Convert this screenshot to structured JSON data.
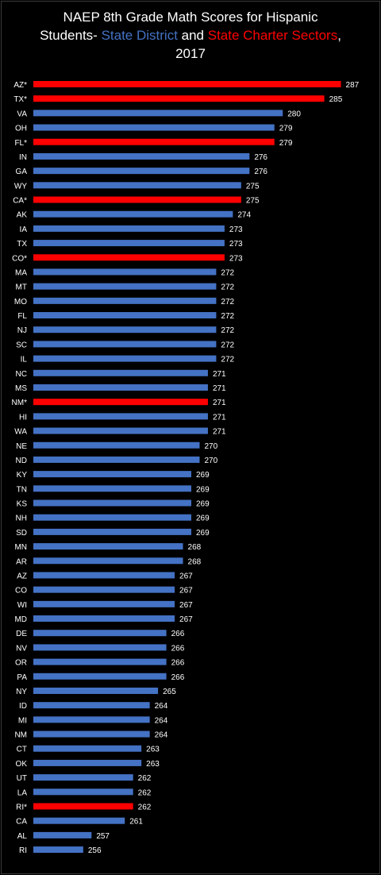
{
  "title": {
    "line1": "NAEP 8th Grade Math Scores for Hispanic",
    "line2_prefix": "Students- ",
    "line2_blue": "State District",
    "line2_mid": " and ",
    "line2_red": "State Charter Sectors",
    "line2_suffix": ",",
    "line3": "2017"
  },
  "colors": {
    "background": "#000000",
    "district": "#4472C4",
    "charter": "#FF0000",
    "text": "#FFFFFF"
  },
  "chart_data": {
    "type": "bar",
    "orientation": "horizontal",
    "xlim": [
      250,
      288
    ],
    "grid": false,
    "legend": "none",
    "categories": [
      "AZ*",
      "TX*",
      "VA",
      "OH",
      "FL*",
      "IN",
      "GA",
      "WY",
      "CA*",
      "AK",
      "IA",
      "TX",
      "CO*",
      "MA",
      "MT",
      "MO",
      "FL",
      "NJ",
      "SC",
      "IL",
      "NC",
      "MS",
      "NM*",
      "HI",
      "WA",
      "NE",
      "ND",
      "KY",
      "TN",
      "KS",
      "NH",
      "SD",
      "MN",
      "AR",
      "AZ",
      "CO",
      "WI",
      "MD",
      "DE",
      "NV",
      "OR",
      "PA",
      "NY",
      "ID",
      "MI",
      "NM",
      "CT",
      "OK",
      "UT",
      "LA",
      "RI*",
      "CA",
      "AL",
      "RI"
    ],
    "values": [
      287,
      285,
      280,
      279,
      279,
      276,
      276,
      275,
      275,
      274,
      273,
      273,
      273,
      272,
      272,
      272,
      272,
      272,
      272,
      272,
      271,
      271,
      271,
      271,
      271,
      270,
      270,
      269,
      269,
      269,
      269,
      269,
      268,
      268,
      267,
      267,
      267,
      267,
      266,
      266,
      266,
      266,
      265,
      264,
      264,
      264,
      263,
      263,
      262,
      262,
      262,
      261,
      257,
      256
    ],
    "charter": [
      true,
      true,
      false,
      false,
      true,
      false,
      false,
      false,
      true,
      false,
      false,
      false,
      true,
      false,
      false,
      false,
      false,
      false,
      false,
      false,
      false,
      false,
      true,
      false,
      false,
      false,
      false,
      false,
      false,
      false,
      false,
      false,
      false,
      false,
      false,
      false,
      false,
      false,
      false,
      false,
      false,
      false,
      false,
      false,
      false,
      false,
      false,
      false,
      false,
      false,
      true,
      false,
      false,
      false
    ]
  }
}
